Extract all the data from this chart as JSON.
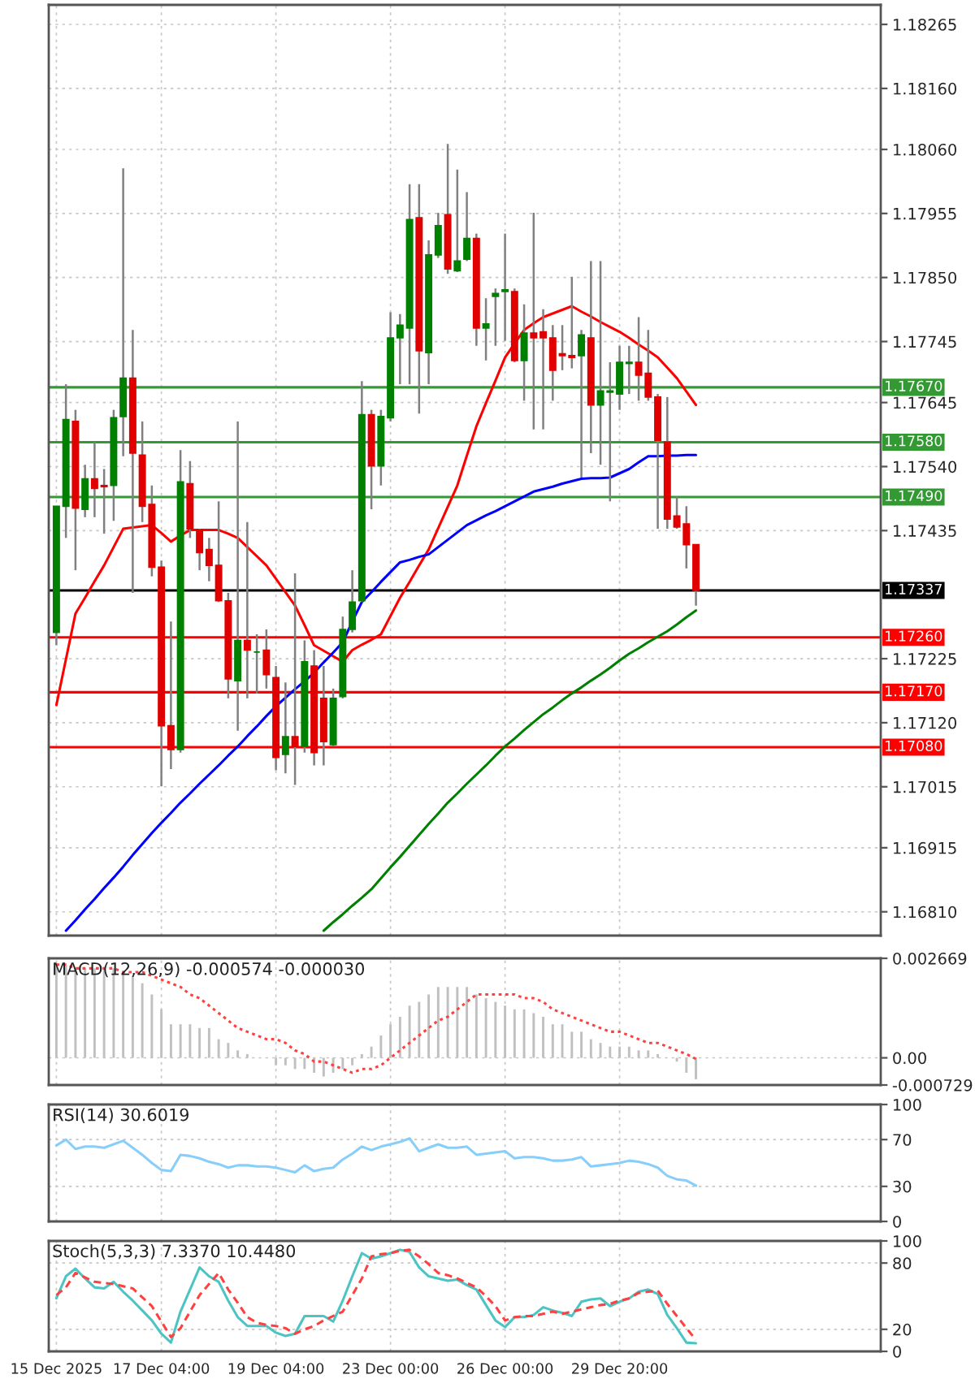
{
  "chart_data": [
    {
      "type": "candlestick",
      "categories": [
        null,
        null,
        null,
        null,
        null,
        null,
        null,
        null,
        null,
        null,
        null,
        null,
        null,
        null,
        null,
        null,
        null,
        null,
        null,
        null,
        null,
        null,
        null,
        null,
        null,
        null,
        null,
        null,
        null,
        null,
        null,
        null,
        null,
        null,
        null,
        null,
        null,
        null,
        null,
        null,
        null,
        null,
        null,
        null,
        null,
        null,
        null,
        null,
        null,
        null,
        null,
        null,
        null,
        null,
        null,
        null,
        null,
        null,
        null,
        null,
        null,
        null,
        null,
        null,
        null,
        null,
        null,
        null
      ],
      "ohlc": [
        [
          1.17268,
          1.17475,
          1.17247,
          1.17475
        ],
        [
          1.17475,
          1.17675,
          1.17423,
          1.17617
        ],
        [
          1.17614,
          1.17633,
          1.1737,
          1.17472
        ],
        [
          1.1747,
          1.17543,
          1.17457,
          1.1752
        ],
        [
          1.1752,
          1.1758,
          1.17457,
          1.17504
        ],
        [
          1.17509,
          1.17536,
          1.1743,
          1.17507
        ],
        [
          1.17509,
          1.17633,
          1.17451,
          1.1762
        ],
        [
          1.17622,
          1.18029,
          1.17557,
          1.17685
        ],
        [
          1.17685,
          1.17764,
          1.17333,
          1.17562
        ],
        [
          1.17559,
          1.17614,
          1.17449,
          1.17475
        ],
        [
          1.17478,
          1.17509,
          1.1736,
          1.17375
        ],
        [
          1.17375,
          1.17386,
          1.17016,
          1.17115
        ],
        [
          1.17115,
          1.17286,
          1.17044,
          1.17076
        ],
        [
          1.17076,
          1.17567,
          1.17071,
          1.17515
        ],
        [
          1.17512,
          1.17549,
          1.17423,
          1.17438
        ],
        [
          1.17436,
          1.17438,
          1.1737,
          1.17399
        ],
        [
          1.17404,
          1.17423,
          1.17352,
          1.17378
        ],
        [
          1.17378,
          1.17483,
          1.17318,
          1.1732
        ],
        [
          1.1732,
          1.17333,
          1.1716,
          1.17192
        ],
        [
          1.17189,
          1.17614,
          1.17107,
          1.17255
        ],
        [
          1.17255,
          1.17449,
          1.1716,
          1.17239
        ],
        [
          1.17236,
          1.17265,
          1.17168,
          1.17236
        ],
        [
          1.17239,
          1.17273,
          1.17176,
          1.17199
        ],
        [
          1.17194,
          1.17213,
          1.17042,
          1.17063
        ],
        [
          1.17068,
          1.17186,
          1.17037,
          1.17097
        ],
        [
          1.17097,
          1.17365,
          1.17018,
          1.17081
        ],
        [
          1.17081,
          1.17255,
          1.17071,
          1.1722
        ],
        [
          1.17213,
          1.17239,
          1.1705,
          1.17071
        ],
        [
          1.1716,
          1.17213,
          1.1705,
          1.17089
        ],
        [
          1.17084,
          1.17176,
          1.17081,
          1.1716
        ],
        [
          1.17163,
          1.17294,
          1.1716,
          1.17273
        ],
        [
          1.17273,
          1.1737,
          1.17268,
          1.17318
        ],
        [
          1.1732,
          1.1768,
          1.17318,
          1.17625
        ],
        [
          1.17625,
          1.17633,
          1.1747,
          1.17541
        ],
        [
          1.17541,
          1.17633,
          1.17509,
          1.17622
        ],
        [
          1.1762,
          1.17793,
          1.17614,
          1.17751
        ],
        [
          1.17751,
          1.1779,
          1.17675,
          1.17772
        ],
        [
          1.17767,
          1.18003,
          1.17675,
          1.17945
        ],
        [
          1.17948,
          1.18003,
          1.17627,
          1.1773
        ],
        [
          1.17727,
          1.17911,
          1.17675,
          1.17887
        ],
        [
          1.17887,
          1.17956,
          1.17882,
          1.17935
        ],
        [
          1.17953,
          1.18069,
          1.17856,
          1.17864
        ],
        [
          1.17861,
          1.18027,
          1.17859,
          1.17877
        ],
        [
          1.1788,
          1.1799,
          1.17877,
          1.17914
        ],
        [
          1.17914,
          1.17922,
          1.17738,
          1.17767
        ],
        [
          1.17767,
          1.17816,
          1.17714,
          1.17774
        ],
        [
          1.17819,
          1.17832,
          1.17738,
          1.17824
        ],
        [
          1.17827,
          1.17922,
          1.17746,
          1.1783
        ],
        [
          1.17827,
          1.17832,
          1.17711,
          1.17714
        ],
        [
          1.17714,
          1.17806,
          1.17648,
          1.17759
        ],
        [
          1.17759,
          1.17956,
          1.17601,
          1.17751
        ],
        [
          1.17761,
          1.17798,
          1.17601,
          1.17751
        ],
        [
          1.17751,
          1.17772,
          1.17648,
          1.17698
        ],
        [
          1.17725,
          1.17772,
          1.17698,
          1.17722
        ],
        [
          1.17722,
          1.17851,
          1.17701,
          1.17719
        ],
        [
          1.17722,
          1.17764,
          1.17522,
          1.17756
        ],
        [
          1.17751,
          1.17877,
          1.17562,
          1.17641
        ],
        [
          1.17641,
          1.17877,
          1.17543,
          1.17664
        ],
        [
          1.17662,
          1.17711,
          1.17483,
          1.17664
        ],
        [
          1.17659,
          1.17738,
          1.17633,
          1.17711
        ],
        [
          1.17709,
          1.17738,
          1.17659,
          1.17711
        ],
        [
          1.17711,
          1.17785,
          1.17648,
          1.1769
        ],
        [
          1.17693,
          1.17764,
          1.17648,
          1.17654
        ],
        [
          1.17654,
          1.17659,
          1.17438,
          1.17583
        ],
        [
          1.1758,
          1.17654,
          1.17438,
          1.17454
        ],
        [
          1.17459,
          1.17491,
          1.17438,
          1.17441
        ],
        [
          1.17446,
          1.17475,
          1.17373,
          1.17412
        ],
        [
          1.17412,
          1.17412,
          1.17312,
          1.17337
        ]
      ],
      "colors": [
        "#008000",
        "#008000",
        "#e00000",
        "#008000",
        "#e00000",
        "#e00000",
        "#008000",
        "#008000",
        "#e00000",
        "#e00000",
        "#e00000",
        "#e00000",
        "#e00000",
        "#008000",
        "#e00000",
        "#e00000",
        "#e00000",
        "#e00000",
        "#e00000",
        "#008000",
        "#e00000",
        "#008000",
        "#e00000",
        "#e00000",
        "#008000",
        "#e00000",
        "#008000",
        "#e00000",
        "#e00000",
        "#008000",
        "#008000",
        "#008000",
        "#008000",
        "#e00000",
        "#008000",
        "#008000",
        "#008000",
        "#008000",
        "#e00000",
        "#008000",
        "#008000",
        "#e00000",
        "#008000",
        "#008000",
        "#e00000",
        "#008000",
        "#008000",
        "#008000",
        "#e00000",
        "#008000",
        "#e00000",
        "#e00000",
        "#e00000",
        "#e00000",
        "#e00000",
        "#008000",
        "#e00000",
        "#008000",
        "#008000",
        "#008000",
        "#008000",
        "#e00000",
        "#e00000",
        "#e00000",
        "#e00000",
        "#e00000",
        "#e00000",
        "#e00000"
      ],
      "series": [
        {
          "type": "line",
          "color": "#ff0000",
          "values": [
            1.17149,
            1.17224,
            1.17299,
            1.17325,
            1.17352,
            1.17378,
            1.17408,
            1.17438,
            1.1744,
            1.17442,
            1.17444,
            1.17431,
            1.17417,
            1.17427,
            1.17436,
            1.17436,
            1.17436,
            1.17436,
            1.1743,
            1.17423,
            1.17408,
            1.17393,
            1.17378,
            1.17356,
            1.17334,
            1.17312,
            1.1728,
            1.17247,
            1.17238,
            1.17229,
            1.1722,
            1.17239,
            1.17248,
            1.17256,
            1.17265,
            1.17295,
            1.17325,
            1.17351,
            1.17378,
            1.17404,
            1.17439,
            1.17474,
            1.17509,
            1.17558,
            1.17606,
            1.17644,
            1.17681,
            1.17719,
            1.17742,
            1.17764,
            1.17775,
            1.17785,
            1.17791,
            1.17797,
            1.17803,
            1.17794,
            1.17786,
            1.17777,
            1.17769,
            1.17761,
            1.17751,
            1.1774,
            1.1773,
            1.17719,
            1.17702,
            1.17685,
            1.17663,
            1.17641
          ]
        },
        {
          "type": "line",
          "color": "#0000ff",
          "values": [
            null,
            1.16779,
            1.16796,
            1.16814,
            1.16831,
            1.16849,
            1.16866,
            1.16884,
            1.16903,
            1.16921,
            1.16939,
            1.16956,
            1.16972,
            1.16989,
            1.17004,
            1.1702,
            1.17035,
            1.1705,
            1.17066,
            1.17081,
            1.17098,
            1.17114,
            1.17131,
            1.17147,
            1.17161,
            1.17175,
            1.17188,
            1.17202,
            1.17219,
            1.17235,
            1.17252,
            1.17286,
            1.17318,
            1.17334,
            1.17351,
            1.17367,
            1.17383,
            1.17387,
            1.17392,
            1.17396,
            1.17408,
            1.1742,
            1.17432,
            1.17444,
            1.17452,
            1.1746,
            1.17467,
            1.17475,
            1.17483,
            1.17491,
            1.17499,
            1.17503,
            1.17507,
            1.17512,
            1.17516,
            1.1752,
            1.17521,
            1.17521,
            1.17522,
            1.17529,
            1.17536,
            1.17547,
            1.17557,
            1.17557,
            1.17558,
            1.17558,
            1.17559,
            1.17559
          ]
        },
        {
          "type": "line",
          "color": "#008000",
          "values": [
            null,
            null,
            null,
            null,
            null,
            null,
            null,
            null,
            null,
            null,
            null,
            null,
            null,
            null,
            null,
            null,
            null,
            null,
            null,
            null,
            null,
            null,
            null,
            null,
            null,
            null,
            null,
            null,
            1.16779,
            1.16793,
            1.16806,
            1.1682,
            1.16833,
            1.16847,
            1.16865,
            1.16883,
            1.169,
            1.16918,
            1.16936,
            1.16954,
            1.16971,
            1.16989,
            1.17004,
            1.1702,
            1.17035,
            1.1705,
            1.17066,
            1.17081,
            1.17094,
            1.17108,
            1.17121,
            1.17134,
            1.17145,
            1.17157,
            1.17168,
            1.17178,
            1.17189,
            1.17199,
            1.1721,
            1.17222,
            1.17233,
            1.17242,
            1.17252,
            1.17261,
            1.1727,
            1.17281,
            1.17293,
            1.17304
          ]
        }
      ],
      "ylim": [
        1.16771,
        1.18297
      ],
      "yticks": [
        1.18265,
        {
          "value": 1.1816,
          "label": "1.18160"
        },
        {
          "value": 1.1806,
          "label": "1.18060"
        },
        1.17955,
        {
          "value": 1.1785,
          "label": "1.17850"
        },
        1.17745,
        1.17645,
        {
          "value": 1.1754,
          "label": "1.17540"
        },
        1.17435,
        1.17225,
        {
          "value": 1.1712,
          "label": "1.17120"
        },
        1.17015,
        1.16915,
        {
          "value": 1.1681,
          "label": "1.16810"
        }
      ],
      "ref_lines": [
        {
          "axis": "y",
          "value": 1.1767,
          "label": "1.17670",
          "color": "#339933"
        },
        {
          "axis": "y",
          "value": 1.1758,
          "label": "1.17580",
          "color": "#339933"
        },
        {
          "axis": "y",
          "value": 1.1749,
          "label": "1.17490",
          "color": "#339933"
        },
        {
          "axis": "y",
          "value": 1.17337,
          "label": "1.17337",
          "color": "#000000"
        },
        {
          "axis": "y",
          "value": 1.1726,
          "label": "1.17260",
          "color": "#ff0000"
        },
        {
          "axis": "y",
          "value": 1.1717,
          "label": "1.17170",
          "color": "#ff0000"
        },
        {
          "axis": "y",
          "value": 1.1708,
          "label": "1.17080",
          "color": "#ff0000"
        }
      ],
      "grid": true,
      "tick_labels": "y"
    },
    {
      "type": "bar",
      "annotations": [
        "MACD(12,26,9) -0.000574 -0.000030"
      ],
      "categories": [
        null,
        null,
        null,
        null,
        null,
        null,
        null,
        null,
        null,
        null,
        null,
        null,
        null,
        null,
        null,
        null,
        null,
        null,
        null,
        null,
        null,
        null,
        null,
        null,
        null,
        null,
        null,
        null,
        null,
        null,
        null,
        null,
        null,
        null,
        null,
        null,
        null,
        null,
        null,
        null,
        null,
        null,
        null,
        null,
        null,
        null,
        null,
        null,
        null,
        null,
        null,
        null,
        null,
        null,
        null,
        null,
        null,
        null,
        null,
        null,
        null,
        null,
        null,
        null,
        null,
        null,
        null,
        null
      ],
      "series": [
        {
          "type": "bar",
          "color": "#c0c0c0",
          "values": [
            0.0025,
            0.0025,
            0.0024,
            0.0024,
            0.0024,
            0.0024,
            0.0024,
            0.0023,
            0.0022,
            0.002,
            0.0017,
            0.0013,
            0.0009,
            0.0009,
            0.0009,
            0.0008,
            0.0008,
            0.0005,
            0.0004,
            0.0002,
            0.0001,
            0.0,
            0.0,
            -0.0002,
            -0.0002,
            -0.0003,
            -0.0003,
            -0.0004,
            -0.0005,
            -0.0004,
            -0.0003,
            -0.0002,
            0.0001,
            0.0003,
            0.0006,
            0.0009,
            0.0011,
            0.0014,
            0.0015,
            0.0017,
            0.0019,
            0.0019,
            0.0019,
            0.0019,
            0.0017,
            0.0016,
            0.0015,
            0.0014,
            0.0013,
            0.0013,
            0.0012,
            0.0011,
            0.0009,
            0.0009,
            0.0007,
            0.0007,
            0.0005,
            0.0004,
            0.0003,
            0.0003,
            0.0003,
            0.0002,
            0.0002,
            0.0001,
            0.0,
            -0.0001,
            -0.0004,
            -0.000574
          ]
        },
        {
          "type": "line",
          "color": "#ff4040",
          "line_style": "dotted",
          "values": [
            0.0025,
            0.0025,
            0.0024,
            0.0024,
            0.0024,
            0.0024,
            0.0024,
            0.0023,
            0.0023,
            0.0023,
            0.0022,
            0.0021,
            0.002,
            0.0019,
            0.0017,
            0.0016,
            0.0014,
            0.0012,
            0.001,
            0.0008,
            0.0007,
            0.0006,
            0.0005,
            0.0005,
            0.0004,
            0.0002,
            0.0001,
            -0.0001,
            -0.0001,
            -0.0002,
            -0.0003,
            -0.0004,
            -0.0003,
            -0.0003,
            -0.0002,
            0.0,
            0.0002,
            0.0004,
            0.0006,
            0.0008,
            0.001,
            0.0011,
            0.0013,
            0.0015,
            0.0017,
            0.0017,
            0.0017,
            0.0017,
            0.0017,
            0.0016,
            0.0016,
            0.0015,
            0.0013,
            0.0012,
            0.0011,
            0.001,
            0.0009,
            0.0008,
            0.0007,
            0.0007,
            0.0006,
            0.0005,
            0.0004,
            0.0004,
            0.0003,
            0.0002,
            0.0001,
            -3e-05
          ]
        }
      ],
      "ylim": [
        -0.000729,
        0.002669
      ],
      "yticks": [
        0.002669,
        {
          "value": 0,
          "label": "0.00"
        },
        -0.000729
      ],
      "grid": true,
      "tick_labels": "y"
    },
    {
      "type": "line",
      "annotations": [
        "RSI(14) 30.6019"
      ],
      "categories": [
        null,
        null,
        null,
        null,
        null,
        null,
        null,
        null,
        null,
        null,
        null,
        null,
        null,
        null,
        null,
        null,
        null,
        null,
        null,
        null,
        null,
        null,
        null,
        null,
        null,
        null,
        null,
        null,
        null,
        null,
        null,
        null,
        null,
        null,
        null,
        null,
        null,
        null,
        null,
        null,
        null,
        null,
        null,
        null,
        null,
        null,
        null,
        null,
        null,
        null,
        null,
        null,
        null,
        null,
        null,
        null,
        null,
        null,
        null,
        null,
        null,
        null,
        null,
        null,
        null,
        null,
        null,
        null
      ],
      "series": [
        {
          "color": "#87cefa",
          "values": [
            65,
            70,
            62,
            64,
            64,
            63,
            66,
            69,
            63,
            57,
            50,
            44,
            43,
            57,
            56,
            54,
            51,
            49,
            46,
            48,
            48,
            47,
            47,
            46,
            44,
            42,
            48,
            43,
            45,
            46,
            53,
            58,
            64,
            61,
            64,
            66,
            68,
            71,
            60,
            63,
            66,
            63,
            63,
            64,
            57,
            58,
            59,
            60,
            54,
            55,
            55,
            54,
            52,
            52,
            53,
            55,
            47,
            48,
            49,
            50,
            52,
            51,
            49,
            46,
            39,
            36,
            35,
            30.6
          ]
        }
      ],
      "ylim": [
        0,
        100
      ],
      "yticks": [
        0,
        30,
        70,
        100
      ],
      "grid": true,
      "tick_labels": "y"
    },
    {
      "type": "line",
      "annotations": [
        "Stoch(5,3,3) 7.3370 10.4480"
      ],
      "categories": [
        "15 Dec 2025",
        null,
        null,
        null,
        null,
        null,
        null,
        null,
        null,
        null,
        null,
        "17 Dec 04:00",
        null,
        null,
        null,
        null,
        null,
        null,
        null,
        null,
        null,
        null,
        null,
        "19 Dec 04:00",
        null,
        null,
        null,
        null,
        null,
        null,
        null,
        null,
        null,
        null,
        null,
        "23 Dec 00:00",
        null,
        null,
        null,
        null,
        null,
        null,
        null,
        null,
        null,
        null,
        null,
        "26 Dec 00:00",
        null,
        null,
        null,
        null,
        null,
        null,
        null,
        null,
        null,
        null,
        null,
        "29 Dec 20:00",
        null,
        null,
        null,
        null,
        null,
        null,
        null,
        null
      ],
      "series": [
        {
          "color": "#4dc4c4",
          "values": [
            48,
            68,
            75,
            66,
            58,
            57,
            63,
            54,
            46,
            37,
            28,
            16,
            8,
            36,
            56,
            76,
            68,
            63,
            46,
            31,
            23,
            23,
            23,
            17,
            14,
            16,
            32,
            32,
            32,
            27,
            46,
            68,
            89,
            84,
            86,
            89,
            92,
            90,
            76,
            68,
            66,
            64,
            65,
            60,
            56,
            42,
            28,
            22,
            31,
            31,
            33,
            40,
            37,
            35,
            32,
            45,
            47,
            48,
            41,
            45,
            48,
            54,
            56,
            52,
            33,
            21,
            8,
            7.337
          ]
        },
        {
          "color": "#ff4040",
          "line_style": "dashed",
          "values": [
            51,
            58,
            71,
            67,
            63,
            62,
            61,
            59,
            57,
            49,
            41,
            27,
            13,
            21,
            36,
            51,
            61,
            71,
            56,
            44,
            31,
            26,
            24,
            23,
            21,
            16,
            20,
            23,
            28,
            32,
            36,
            51,
            66,
            86,
            88,
            89,
            91,
            92,
            86,
            79,
            71,
            69,
            66,
            62,
            58,
            50,
            41,
            28,
            31,
            32,
            32,
            34,
            36,
            34,
            36,
            38,
            40,
            42,
            43,
            46,
            48,
            53,
            54,
            55,
            43,
            32,
            21,
            10.448
          ]
        }
      ],
      "ylim": [
        0,
        100
      ],
      "yticks": [
        0,
        20,
        80,
        100
      ],
      "grid": true
    }
  ]
}
